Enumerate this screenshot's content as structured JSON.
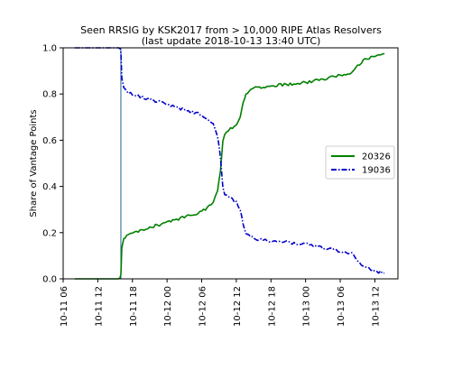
{
  "chart_data": {
    "type": "line",
    "title": "Seen RRSIG by KSK2017 from > 10,000 RIPE Atlas Resolvers",
    "subtitle": "(last update 2018-10-13 13:40 UTC)",
    "xlabel": "",
    "ylabel": "Share of Vantage Points",
    "x_range": [
      "2018-10-11 06:00",
      "2018-10-13 16:00"
    ],
    "ylim": [
      0.0,
      1.0
    ],
    "x_ticks": [
      "10-11 06",
      "10-11 12",
      "10-11 18",
      "10-12 00",
      "10-12 06",
      "10-12 12",
      "10-12 18",
      "10-13 00",
      "10-13 06",
      "10-13 12"
    ],
    "y_ticks": [
      "0.0",
      "0.2",
      "0.4",
      "0.6",
      "0.8",
      "1.0"
    ],
    "grid": false,
    "legend_position": "right",
    "event_marker_x": "2018-10-11 16:00",
    "series": [
      {
        "name": "20326",
        "color": "#008000",
        "style": "solid",
        "points": [
          [
            "2018-10-11 08:00",
            0.0
          ],
          [
            "2018-10-11 15:50",
            0.0
          ],
          [
            "2018-10-11 16:00",
            0.02
          ],
          [
            "2018-10-11 16:10",
            0.13
          ],
          [
            "2018-10-11 16:30",
            0.17
          ],
          [
            "2018-10-11 17:00",
            0.19
          ],
          [
            "2018-10-11 18:00",
            0.2
          ],
          [
            "2018-10-11 20:00",
            0.215
          ],
          [
            "2018-10-11 22:00",
            0.23
          ],
          [
            "2018-10-12 00:00",
            0.245
          ],
          [
            "2018-10-12 02:00",
            0.26
          ],
          [
            "2018-10-12 04:00",
            0.275
          ],
          [
            "2018-10-12 06:00",
            0.29
          ],
          [
            "2018-10-12 07:00",
            0.31
          ],
          [
            "2018-10-12 08:00",
            0.33
          ],
          [
            "2018-10-12 08:45",
            0.38
          ],
          [
            "2018-10-12 09:15",
            0.47
          ],
          [
            "2018-10-12 09:40",
            0.6
          ],
          [
            "2018-10-12 10:00",
            0.63
          ],
          [
            "2018-10-12 11:00",
            0.65
          ],
          [
            "2018-10-12 12:00",
            0.67
          ],
          [
            "2018-10-12 12:40",
            0.7
          ],
          [
            "2018-10-12 13:10",
            0.76
          ],
          [
            "2018-10-12 13:40",
            0.8
          ],
          [
            "2018-10-12 14:30",
            0.82
          ],
          [
            "2018-10-12 16:00",
            0.83
          ],
          [
            "2018-10-12 18:00",
            0.835
          ],
          [
            "2018-10-12 20:00",
            0.84
          ],
          [
            "2018-10-12 22:00",
            0.845
          ],
          [
            "2018-10-13 00:00",
            0.85
          ],
          [
            "2018-10-13 02:00",
            0.86
          ],
          [
            "2018-10-13 04:00",
            0.87
          ],
          [
            "2018-10-13 06:00",
            0.88
          ],
          [
            "2018-10-13 08:00",
            0.89
          ],
          [
            "2018-10-13 09:00",
            0.92
          ],
          [
            "2018-10-13 10:00",
            0.945
          ],
          [
            "2018-10-13 11:00",
            0.955
          ],
          [
            "2018-10-13 12:00",
            0.965
          ],
          [
            "2018-10-13 13:40",
            0.975
          ]
        ]
      },
      {
        "name": "19036",
        "color": "#0000cc",
        "style": "dashdot",
        "points": [
          [
            "2018-10-11 08:00",
            1.0
          ],
          [
            "2018-10-11 15:50",
            1.0
          ],
          [
            "2018-10-11 16:00",
            0.98
          ],
          [
            "2018-10-11 16:10",
            0.87
          ],
          [
            "2018-10-11 16:30",
            0.83
          ],
          [
            "2018-10-11 17:00",
            0.81
          ],
          [
            "2018-10-11 18:00",
            0.8
          ],
          [
            "2018-10-11 20:00",
            0.785
          ],
          [
            "2018-10-11 22:00",
            0.77
          ],
          [
            "2018-10-12 00:00",
            0.755
          ],
          [
            "2018-10-12 02:00",
            0.74
          ],
          [
            "2018-10-12 04:00",
            0.725
          ],
          [
            "2018-10-12 06:00",
            0.71
          ],
          [
            "2018-10-12 07:00",
            0.69
          ],
          [
            "2018-10-12 08:00",
            0.67
          ],
          [
            "2018-10-12 08:45",
            0.62
          ],
          [
            "2018-10-12 09:15",
            0.53
          ],
          [
            "2018-10-12 09:40",
            0.4
          ],
          [
            "2018-10-12 10:00",
            0.37
          ],
          [
            "2018-10-12 11:00",
            0.35
          ],
          [
            "2018-10-12 12:00",
            0.33
          ],
          [
            "2018-10-12 12:40",
            0.3
          ],
          [
            "2018-10-12 13:10",
            0.24
          ],
          [
            "2018-10-12 13:40",
            0.2
          ],
          [
            "2018-10-12 14:30",
            0.18
          ],
          [
            "2018-10-12 16:00",
            0.17
          ],
          [
            "2018-10-12 18:00",
            0.165
          ],
          [
            "2018-10-12 20:00",
            0.16
          ],
          [
            "2018-10-12 22:00",
            0.155
          ],
          [
            "2018-10-13 00:00",
            0.15
          ],
          [
            "2018-10-13 02:00",
            0.14
          ],
          [
            "2018-10-13 04:00",
            0.13
          ],
          [
            "2018-10-13 06:00",
            0.12
          ],
          [
            "2018-10-13 08:00",
            0.11
          ],
          [
            "2018-10-13 09:00",
            0.08
          ],
          [
            "2018-10-13 10:00",
            0.055
          ],
          [
            "2018-10-13 11:00",
            0.045
          ],
          [
            "2018-10-13 12:00",
            0.035
          ],
          [
            "2018-10-13 13:40",
            0.025
          ]
        ]
      }
    ]
  }
}
